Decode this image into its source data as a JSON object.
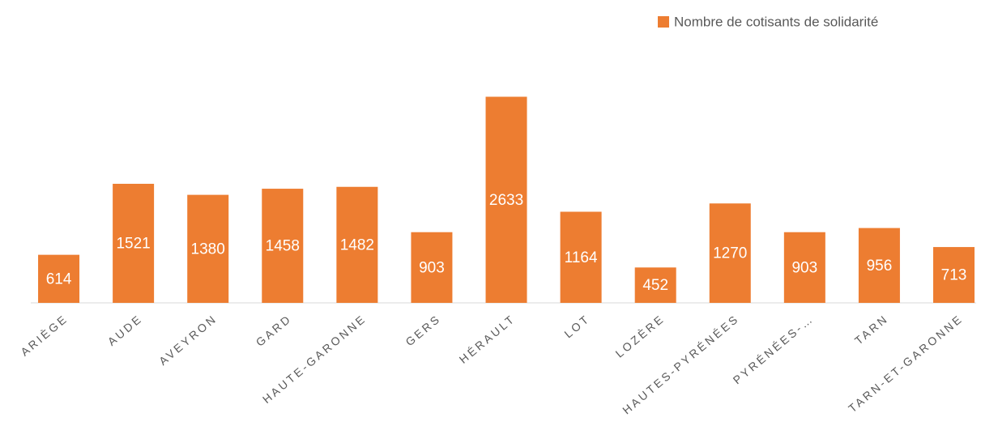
{
  "chart_data": {
    "type": "bar",
    "categories": [
      "ARIÈGE",
      "AUDE",
      "AVEYRON",
      "GARD",
      "HAUTE-GARONNE",
      "GERS",
      "HÉRAULT",
      "LOT",
      "LOZÈRE",
      "HAUTES-PYRÉNÉES",
      "PYRÉNÉES-…",
      "TARN",
      "TARN-ET-GARONNE"
    ],
    "series": [
      {
        "name": "Nombre de cotisants de solidarité",
        "color": "#ED7D31",
        "values": [
          614,
          1521,
          1380,
          1458,
          1482,
          903,
          2633,
          1164,
          452,
          1270,
          903,
          956,
          713
        ]
      }
    ],
    "ylim": [
      0,
      3000
    ]
  }
}
